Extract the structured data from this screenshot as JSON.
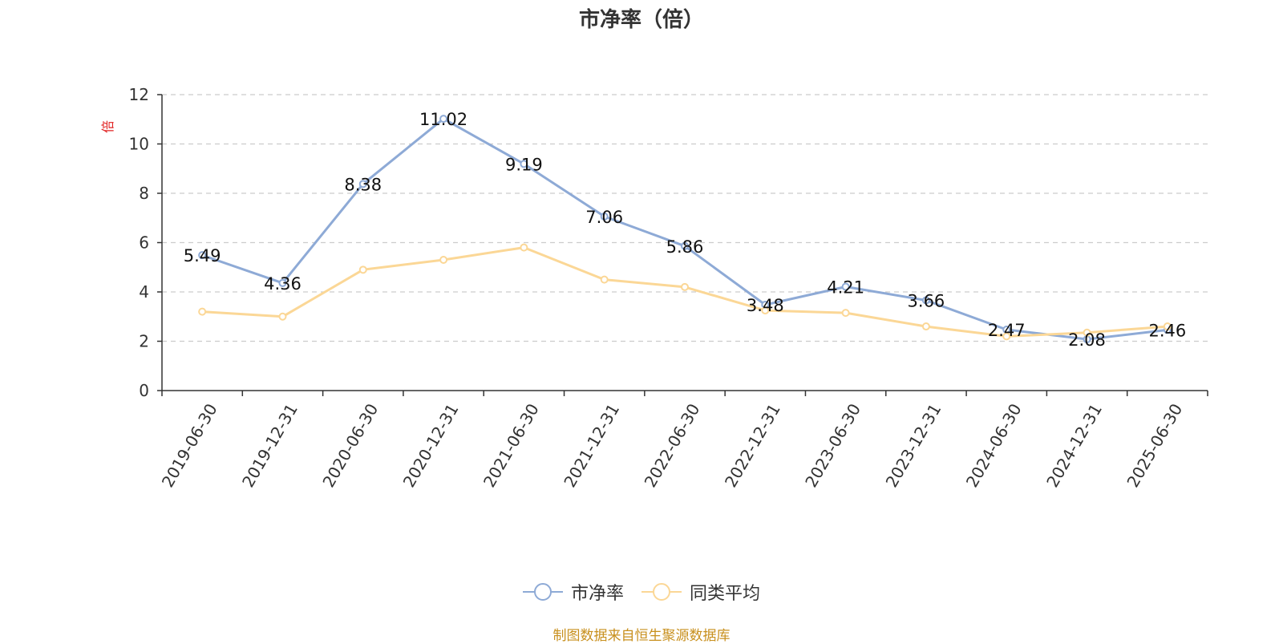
{
  "title": "市净率（倍）",
  "unit_label": "倍",
  "source": "制图数据来自恒生聚源数据库",
  "colors": {
    "series1": "#8eaad6",
    "series2": "#fbd796",
    "unit": "#e02020",
    "source": "#c8901e"
  },
  "chart_data": {
    "type": "line",
    "title": "市净率（倍）",
    "ylabel": "倍",
    "ylim": [
      0,
      12
    ],
    "yticks": [
      0,
      2,
      4,
      6,
      8,
      10,
      12
    ],
    "grid": true,
    "legend_position": "bottom",
    "categories": [
      "2019-06-30",
      "2019-12-31",
      "2020-06-30",
      "2020-12-31",
      "2021-06-30",
      "2021-12-31",
      "2022-06-30",
      "2022-12-31",
      "2023-06-30",
      "2023-12-31",
      "2024-06-30",
      "2024-12-31",
      "2025-06-30"
    ],
    "series": [
      {
        "name": "市净率",
        "values": [
          5.49,
          4.36,
          8.38,
          11.02,
          9.19,
          7.06,
          5.86,
          3.48,
          4.21,
          3.66,
          2.47,
          2.08,
          2.46
        ],
        "labels": [
          "5.49",
          "4.36",
          "8.38",
          "11.02",
          "9.19",
          "7.06",
          "5.86",
          "3.48",
          "4.21",
          "3.66",
          "2.47",
          "2.08",
          "2.46"
        ]
      },
      {
        "name": "同类平均",
        "values": [
          3.2,
          3.0,
          4.9,
          5.3,
          5.8,
          4.5,
          4.2,
          3.25,
          3.15,
          2.6,
          2.2,
          2.35,
          2.6
        ]
      }
    ]
  }
}
